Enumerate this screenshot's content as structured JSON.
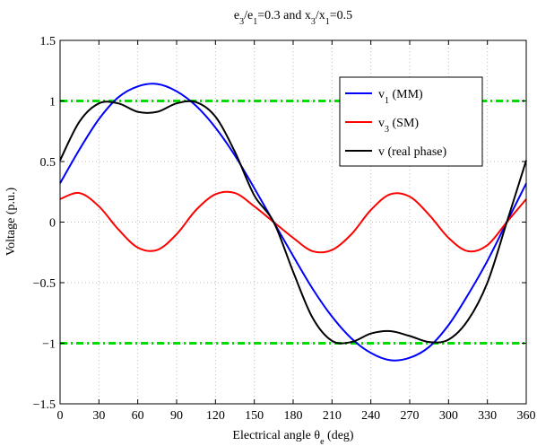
{
  "chart_data": {
    "type": "line",
    "title": {
      "parts": [
        {
          "text": "e",
          "sub": false
        },
        {
          "text": "3",
          "sub": true
        },
        {
          "text": "/e",
          "sub": false
        },
        {
          "text": "1",
          "sub": true
        },
        {
          "text": "=0.3 and x",
          "sub": false
        },
        {
          "text": "3",
          "sub": true
        },
        {
          "text": "/x",
          "sub": false
        },
        {
          "text": "1",
          "sub": true
        },
        {
          "text": "=0.5",
          "sub": false
        }
      ]
    },
    "xlabel": {
      "parts": [
        {
          "text": "Electrical angle θ",
          "sub": false
        },
        {
          "text": "e",
          "sub": true
        },
        {
          "text": " (deg)",
          "sub": false
        }
      ]
    },
    "ylabel": "Voltage (p.u.)",
    "xlim": [
      0,
      360
    ],
    "ylim": [
      -1.5,
      1.5
    ],
    "xticks": [
      0,
      30,
      60,
      90,
      120,
      150,
      180,
      210,
      240,
      270,
      300,
      330,
      360
    ],
    "yticks": [
      -1.5,
      -1,
      -0.5,
      0,
      0.5,
      1,
      1.5
    ],
    "ytick_labels": [
      "−1.5",
      "−1",
      "−0.5",
      "0",
      "0.5",
      "1",
      "1.5"
    ],
    "grid": true,
    "legend_position": "top-right",
    "series": [
      {
        "name": {
          "parts": [
            {
              "text": "v",
              "sub": false
            },
            {
              "text": "1",
              "sub": true
            },
            {
              "text": " (MM)",
              "sub": false
            }
          ]
        },
        "color": "#0000ff",
        "x": [
          0,
          15,
          30,
          45,
          60,
          75,
          90,
          105,
          120,
          135,
          150,
          165,
          180,
          195,
          210,
          225,
          240,
          255,
          270,
          285,
          300,
          315,
          330,
          345,
          360
        ],
        "y": [
          0.32,
          0.6,
          0.85,
          1.03,
          1.12,
          1.14,
          1.08,
          0.96,
          0.78,
          0.55,
          0.28,
          0.0,
          -0.28,
          -0.55,
          -0.78,
          -0.96,
          -1.08,
          -1.14,
          -1.12,
          -1.03,
          -0.85,
          -0.6,
          -0.32,
          0.0,
          0.32
        ]
      },
      {
        "name": {
          "parts": [
            {
              "text": "v",
              "sub": false
            },
            {
              "text": "3",
              "sub": true
            },
            {
              "text": " (SM)",
              "sub": false
            }
          ]
        },
        "color": "#ff0000",
        "x": [
          0,
          15,
          30,
          45,
          60,
          75,
          90,
          105,
          120,
          135,
          150,
          165,
          180,
          195,
          210,
          225,
          240,
          255,
          270,
          285,
          300,
          315,
          330,
          345,
          360
        ],
        "y": [
          0.19,
          0.24,
          0.13,
          -0.06,
          -0.21,
          -0.23,
          -0.1,
          0.1,
          0.23,
          0.24,
          0.13,
          0.0,
          -0.13,
          -0.24,
          -0.23,
          -0.1,
          0.1,
          0.23,
          0.21,
          0.06,
          -0.13,
          -0.24,
          -0.19,
          0.0,
          0.19
        ]
      },
      {
        "name": {
          "parts": [
            {
              "text": "v (real phase)",
              "sub": false
            }
          ]
        },
        "color": "#000000",
        "x": [
          0,
          15,
          30,
          45,
          60,
          75,
          90,
          105,
          120,
          135,
          150,
          165,
          180,
          195,
          210,
          225,
          240,
          255,
          270,
          285,
          300,
          315,
          330,
          345,
          360
        ],
        "y": [
          0.51,
          0.83,
          0.98,
          0.98,
          0.91,
          0.91,
          0.98,
          0.99,
          0.87,
          0.58,
          0.22,
          0.0,
          -0.41,
          -0.79,
          -0.98,
          -0.99,
          -0.92,
          -0.9,
          -0.94,
          -0.99,
          -0.97,
          -0.81,
          -0.5,
          0.0,
          0.51
        ]
      },
      {
        "name": null,
        "color": "#00dd00",
        "dashed": true,
        "x": [
          0,
          360
        ],
        "y": [
          1,
          1
        ]
      },
      {
        "name": null,
        "color": "#00dd00",
        "dashed": true,
        "x": [
          0,
          360
        ],
        "y": [
          -1,
          -1
        ]
      }
    ]
  }
}
